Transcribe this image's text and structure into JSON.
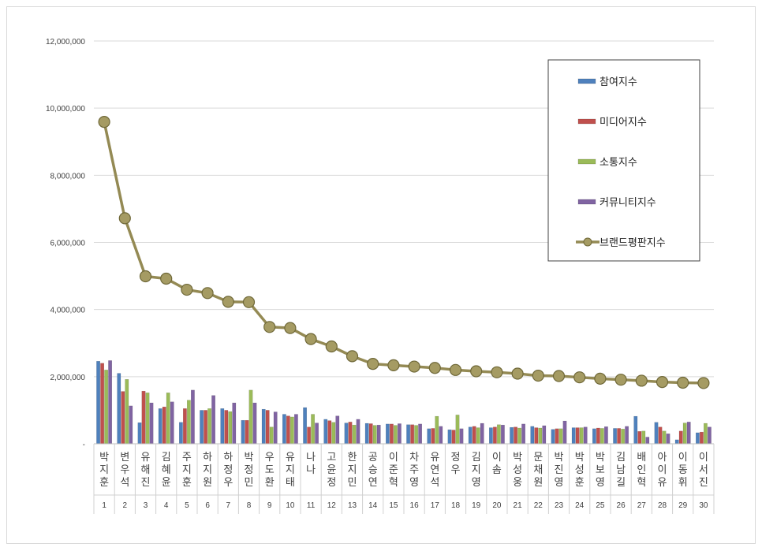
{
  "chart_data": {
    "type": "bar",
    "title": "",
    "xlabel": "",
    "ylabel": "",
    "ylim": [
      0,
      12000000
    ],
    "yticks": [
      {
        "value": 0,
        "label": "-"
      },
      {
        "value": 2000000,
        "label": "2,000,000"
      },
      {
        "value": 4000000,
        "label": "4,000,000"
      },
      {
        "value": 6000000,
        "label": "6,000,000"
      },
      {
        "value": 8000000,
        "label": "8,000,000"
      },
      {
        "value": 10000000,
        "label": "10,000,000"
      },
      {
        "value": 12000000,
        "label": "12,000,000"
      }
    ],
    "grid": true,
    "legend_position": "top-right",
    "ranks": [
      "1",
      "2",
      "3",
      "4",
      "5",
      "6",
      "7",
      "8",
      "9",
      "10",
      "11",
      "12",
      "13",
      "14",
      "15",
      "16",
      "17",
      "18",
      "19",
      "20",
      "21",
      "22",
      "23",
      "24",
      "25",
      "26",
      "27",
      "28",
      "29",
      "30"
    ],
    "categories": [
      "박지훈",
      "변우석",
      "유해진",
      "김혜윤",
      "주지훈",
      "하지원",
      "하정우",
      "박정민",
      "우도환",
      "유지태",
      "나나",
      "고윤정",
      "한지민",
      "공승연",
      "이준혁",
      "차주영",
      "유연석",
      "정우",
      "김지영",
      "이솜",
      "박성웅",
      "문채원",
      "박진영",
      "박성훈",
      "박보영",
      "김남길",
      "배인혁",
      "아이유",
      "이동휘",
      "이서진"
    ],
    "series": [
      {
        "name": "참여지수",
        "color": "#4f81bd",
        "kind": "bar",
        "values": [
          2460000,
          2100000,
          630000,
          1050000,
          640000,
          1000000,
          1050000,
          700000,
          1030000,
          880000,
          1080000,
          730000,
          620000,
          610000,
          590000,
          570000,
          450000,
          420000,
          500000,
          480000,
          490000,
          520000,
          430000,
          480000,
          450000,
          460000,
          820000,
          640000,
          120000,
          330000
        ]
      },
      {
        "name": "미디어지수",
        "color": "#c0504d",
        "kind": "bar",
        "values": [
          2400000,
          1560000,
          1570000,
          1100000,
          1050000,
          1000000,
          1000000,
          700000,
          1000000,
          830000,
          500000,
          690000,
          650000,
          600000,
          590000,
          570000,
          460000,
          410000,
          520000,
          500000,
          500000,
          480000,
          450000,
          480000,
          470000,
          460000,
          370000,
          500000,
          380000,
          350000
        ]
      },
      {
        "name": "소통지수",
        "color": "#9bbb59",
        "kind": "bar",
        "values": [
          2200000,
          1920000,
          1520000,
          1520000,
          1300000,
          1050000,
          960000,
          1600000,
          500000,
          800000,
          880000,
          640000,
          560000,
          550000,
          550000,
          550000,
          820000,
          860000,
          480000,
          570000,
          470000,
          470000,
          450000,
          480000,
          460000,
          440000,
          380000,
          380000,
          620000,
          610000
        ]
      },
      {
        "name": "커뮤니티지수",
        "color": "#8064a2",
        "kind": "bar",
        "values": [
          2480000,
          1130000,
          1220000,
          1250000,
          1600000,
          1440000,
          1220000,
          1220000,
          950000,
          880000,
          620000,
          830000,
          730000,
          560000,
          600000,
          590000,
          520000,
          450000,
          610000,
          560000,
          590000,
          540000,
          680000,
          500000,
          510000,
          520000,
          200000,
          300000,
          650000,
          500000
        ]
      },
      {
        "name": "브랜드평판지수",
        "color": "#948a54",
        "kind": "line",
        "values": [
          9590000,
          6720000,
          4990000,
          4920000,
          4590000,
          4490000,
          4230000,
          4220000,
          3480000,
          3450000,
          3120000,
          2900000,
          2610000,
          2380000,
          2340000,
          2300000,
          2260000,
          2200000,
          2160000,
          2130000,
          2090000,
          2030000,
          2020000,
          1980000,
          1940000,
          1910000,
          1880000,
          1840000,
          1820000,
          1810000
        ]
      }
    ]
  }
}
